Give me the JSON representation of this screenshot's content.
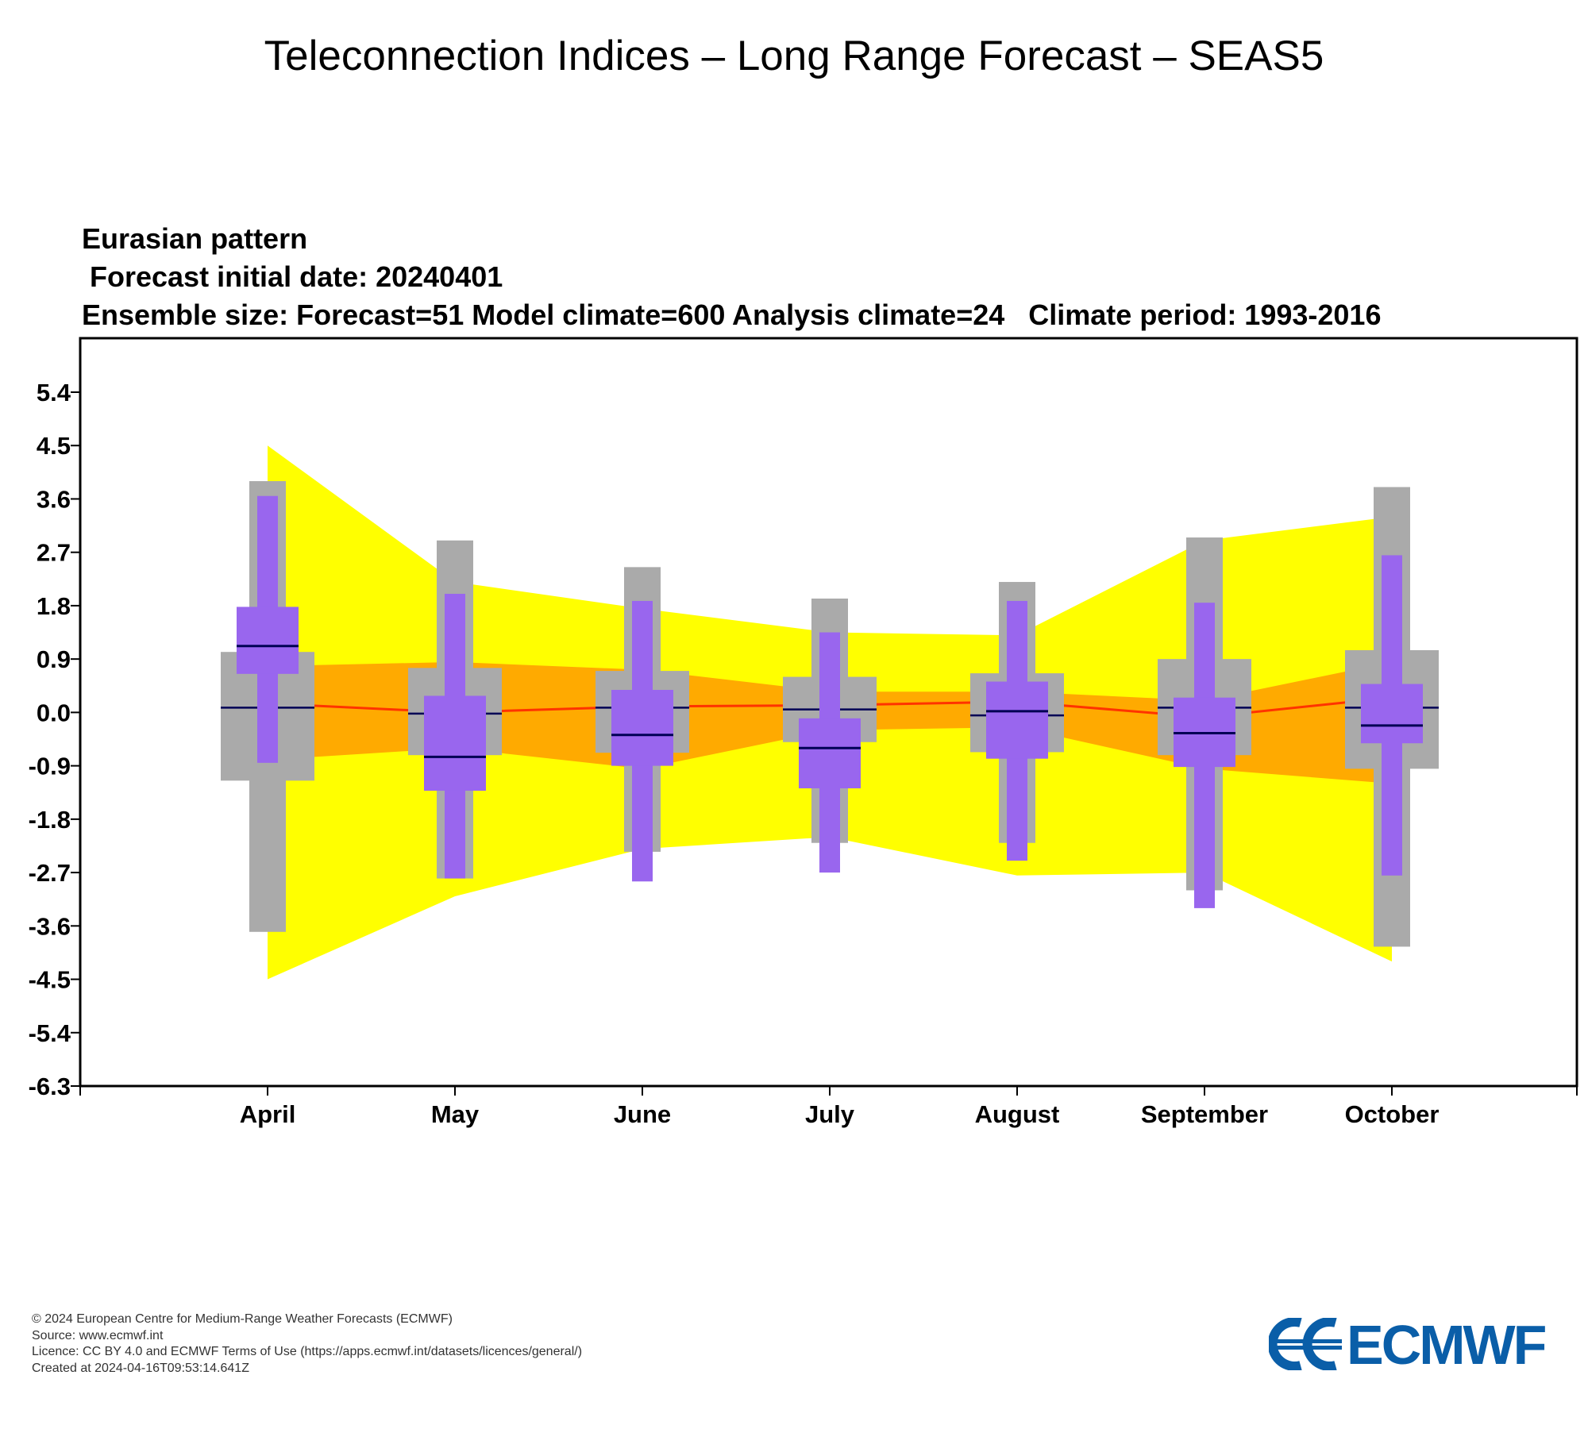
{
  "page": {
    "title": "Teleconnection Indices – Long Range Forecast – SEAS5"
  },
  "chart_data": {
    "type": "box",
    "title": "Eurasian pattern",
    "subtitle_lines": [
      " Forecast initial date: 20240401",
      "Ensemble size: Forecast=51 Model climate=600 Analysis climate=24   Climate period: 1993-2016"
    ],
    "categories": [
      "April",
      "May",
      "June",
      "July",
      "August",
      "September",
      "October"
    ],
    "y_ticks": [
      "5.4",
      "4.5",
      "3.6",
      "2.7",
      "1.8",
      "0.9",
      "0.0",
      "-0.9",
      "-1.8",
      "-2.7",
      "-3.6",
      "-4.5",
      "-5.4",
      "-6.3"
    ],
    "y_tick_values": [
      5.4,
      4.5,
      3.6,
      2.7,
      1.8,
      0.9,
      0.0,
      -0.9,
      -1.8,
      -2.7,
      -3.6,
      -4.5,
      -5.4,
      -6.3
    ],
    "ylim": [
      -6.3,
      6.3
    ],
    "grid": false,
    "colors": {
      "extreme_band": "#ffff00",
      "inner_band": "#ffaa00",
      "model_median_line": "#ff3300",
      "model_climate_box": "#aaaaaa",
      "forecast_box": "#9966ee",
      "median_mark": "#000055"
    },
    "extreme_band": {
      "upper": [
        4.5,
        2.2,
        1.75,
        1.35,
        1.3,
        2.9,
        3.3
      ],
      "lower": [
        -4.5,
        -3.1,
        -2.3,
        -2.1,
        -2.75,
        -2.7,
        -4.2
      ]
    },
    "inner_band": {
      "upper": [
        0.78,
        0.85,
        0.72,
        0.35,
        0.35,
        0.2,
        0.85
      ],
      "lower": [
        -0.8,
        -0.6,
        -0.95,
        -0.3,
        -0.25,
        -0.95,
        -1.2
      ]
    },
    "model_median_line": [
      0.15,
      0.0,
      0.1,
      0.12,
      0.18,
      -0.08,
      0.25
    ],
    "model_climate": [
      {
        "min": -3.7,
        "q1": -1.15,
        "median": 0.08,
        "q3": 1.02,
        "max": 3.9
      },
      {
        "min": -2.8,
        "q1": -0.72,
        "median": -0.02,
        "q3": 0.75,
        "max": 2.9
      },
      {
        "min": -2.35,
        "q1": -0.68,
        "median": 0.08,
        "q3": 0.7,
        "max": 2.45
      },
      {
        "min": -2.2,
        "q1": -0.5,
        "median": 0.05,
        "q3": 0.6,
        "max": 1.92
      },
      {
        "min": -2.2,
        "q1": -0.67,
        "median": -0.05,
        "q3": 0.66,
        "max": 2.2
      },
      {
        "min": -3.0,
        "q1": -0.72,
        "median": 0.08,
        "q3": 0.9,
        "max": 2.95
      },
      {
        "min": -3.95,
        "q1": -0.95,
        "median": 0.08,
        "q3": 1.05,
        "max": 3.8
      }
    ],
    "forecast": [
      {
        "min": -0.85,
        "q1": 0.65,
        "median": 1.12,
        "q3": 1.78,
        "max": 3.65
      },
      {
        "min": -2.8,
        "q1": -1.32,
        "median": -0.75,
        "q3": 0.28,
        "max": 2.0
      },
      {
        "min": -2.85,
        "q1": -0.9,
        "median": -0.38,
        "q3": 0.38,
        "max": 1.88
      },
      {
        "min": -2.7,
        "q1": -1.28,
        "median": -0.6,
        "q3": -0.1,
        "max": 1.35
      },
      {
        "min": -2.5,
        "q1": -0.78,
        "median": 0.02,
        "q3": 0.52,
        "max": 1.88
      },
      {
        "min": -3.3,
        "q1": -0.92,
        "median": -0.35,
        "q3": 0.25,
        "max": 1.85
      },
      {
        "min": -2.75,
        "q1": -0.52,
        "median": -0.22,
        "q3": 0.48,
        "max": 2.65
      }
    ]
  },
  "footer": {
    "copyright": "© 2024 European Centre for Medium-Range Weather Forecasts (ECMWF)",
    "source": "Source: www.ecmwf.int",
    "licence": "Licence: CC BY 4.0 and ECMWF Terms of Use (https://apps.ecmwf.int/datasets/licences/general/)",
    "created": "Created at 2024-04-16T09:53:14.641Z"
  },
  "logo": {
    "text": "ECMWF",
    "icon": "ecmwf-logo-icon",
    "color": "#0a5ea8"
  }
}
